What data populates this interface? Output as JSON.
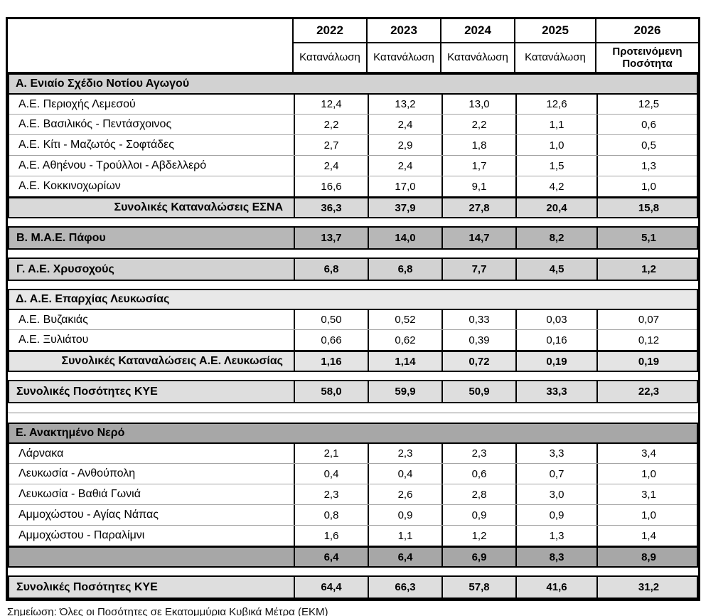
{
  "table": {
    "header": {
      "years": [
        "2022",
        "2023",
        "2024",
        "2025",
        "2026"
      ],
      "subheaders": [
        "Κατανάλωση",
        "Κατανάλωση",
        "Κατανάλωση",
        "Κατανάλωση",
        "Προτεινόμενη Ποσότητα"
      ]
    },
    "blocks": [
      {
        "name": "section-a-eniaio-sxedio-notiou-agogou",
        "gap": "none",
        "rows": [
          {
            "type": "section-header",
            "label": "Α. Ενιαίο Σχέδιο Νοτίου Αγωγού",
            "bg": "#d2d2d2"
          },
          {
            "type": "data",
            "label": "Α.Ε. Περιοχής Λεμεσού",
            "values": [
              "12,4",
              "13,2",
              "13,0",
              "12,6",
              "12,5"
            ]
          },
          {
            "type": "data",
            "label": "Α.Ε. Βασιλικός - Πεντάσχοινος",
            "values": [
              "2,2",
              "2,4",
              "2,2",
              "1,1",
              "0,6"
            ]
          },
          {
            "type": "data",
            "label": "Α.Ε. Κίτι - Μαζωτός - Σοφτάδες",
            "values": [
              "2,7",
              "2,9",
              "1,8",
              "1,0",
              "0,5"
            ]
          },
          {
            "type": "data",
            "label": "Α.Ε. Αθηένου - Τρούλλοι - Αβδελλερό",
            "values": [
              "2,4",
              "2,4",
              "1,7",
              "1,5",
              "1,3"
            ]
          },
          {
            "type": "data",
            "label": "Α.Ε. Κοκκινοχωρίων",
            "values": [
              "16,6",
              "17,0",
              "9,1",
              "4,2",
              "1,0"
            ]
          },
          {
            "type": "total-right",
            "label": "Συνολικές Καταναλώσεις ΕΣΝΑ",
            "values": [
              "36,3",
              "37,9",
              "27,8",
              "20,4",
              "15,8"
            ],
            "bg": "#d9d9d9"
          }
        ]
      },
      {
        "name": "section-b-mae-pafou",
        "gap": "small",
        "rows": [
          {
            "type": "total-left",
            "label": "Β. Μ.Α.Ε. Πάφου",
            "values": [
              "13,7",
              "14,0",
              "14,7",
              "8,2",
              "5,1"
            ],
            "bg": "#b7b7b7"
          }
        ]
      },
      {
        "name": "section-c-ae-chrysochous",
        "gap": "small",
        "rows": [
          {
            "type": "total-left",
            "label": "Γ. Α.Ε. Χρυσοχούς",
            "values": [
              "6,8",
              "6,8",
              "7,7",
              "4,5",
              "1,2"
            ],
            "bg": "#d2d2d2"
          }
        ]
      },
      {
        "name": "section-d-ae-eparxias-lefkosias",
        "gap": "small",
        "rows": [
          {
            "type": "section-header",
            "label": "Δ. Α.Ε. Επαρχίας Λευκωσίας",
            "bg": "#e8e8e8"
          },
          {
            "type": "data",
            "label": "Α.Ε. Βυζακιάς",
            "values": [
              "0,50",
              "0,52",
              "0,33",
              "0,03",
              "0,07"
            ]
          },
          {
            "type": "data",
            "label": "Α.Ε. Ξυλιάτου",
            "values": [
              "0,66",
              "0,62",
              "0,39",
              "0,16",
              "0,12"
            ]
          },
          {
            "type": "total-right",
            "label": "Συνολικές Καταναλώσεις Α.Ε. Λευκωσίας",
            "values": [
              "1,16",
              "1,14",
              "0,72",
              "0,19",
              "0,19"
            ],
            "bg": "#e4e4e4"
          }
        ]
      },
      {
        "name": "totals-kye-desalinated",
        "gap": "small",
        "rows": [
          {
            "type": "total-left",
            "label": "Συνολικές Ποσότητες ΚΥΕ",
            "values": [
              "58,0",
              "59,9",
              "50,9",
              "33,3",
              "22,3"
            ],
            "bg": "#dedede"
          }
        ]
      },
      {
        "name": "section-e-anaktimeno-nero",
        "gap": "large",
        "rows": [
          {
            "type": "section-header",
            "label": "Ε. Ανακτημένο Νερό",
            "bg": "#a7a7a7"
          },
          {
            "type": "data",
            "label": "Λάρνακα",
            "values": [
              "2,1",
              "2,3",
              "2,3",
              "3,3",
              "3,4"
            ]
          },
          {
            "type": "data",
            "label": "Λευκωσία - Ανθούπολη",
            "values": [
              "0,4",
              "0,4",
              "0,6",
              "0,7",
              "1,0"
            ]
          },
          {
            "type": "data",
            "label": "Λευκωσία - Βαθιά Γωνιά",
            "values": [
              "2,3",
              "2,6",
              "2,8",
              "3,0",
              "3,1"
            ]
          },
          {
            "type": "data",
            "label": "Αμμοχώστου -  Αγίας Νάπας",
            "values": [
              "0,8",
              "0,9",
              "0,9",
              "0,9",
              "1,0"
            ]
          },
          {
            "type": "data",
            "label": "Αμμοχώστου -  Παραλίμνι",
            "values": [
              "1,6",
              "1,1",
              "1,2",
              "1,3",
              "1,4"
            ]
          },
          {
            "type": "total-left",
            "label": "",
            "values": [
              "6,4",
              "6,4",
              "6,9",
              "8,3",
              "8,9"
            ],
            "bg": "#a7a7a7"
          }
        ]
      },
      {
        "name": "totals-kye-grand",
        "gap": "small",
        "rows": [
          {
            "type": "total-left",
            "label": "Συνολικές Ποσότητες ΚΥΕ",
            "values": [
              "64,4",
              "66,3",
              "57,8",
              "41,6",
              "31,2"
            ],
            "bg": "#dedede"
          }
        ]
      }
    ],
    "footnote": "Σημείωση: Όλες οι Ποσότητες σε Εκατομμύρια Κυβικά Μέτρα (ΕΚΜ)"
  }
}
